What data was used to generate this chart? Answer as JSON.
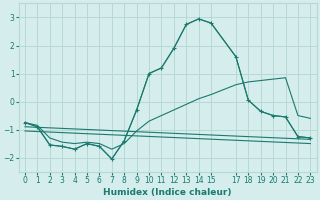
{
  "xlabel": "Humidex (Indice chaleur)",
  "background_color": "#d5edec",
  "grid_color": "#b8d8d6",
  "line_color": "#1a7a6e",
  "xlim": [
    -0.5,
    23.5
  ],
  "ylim": [
    -2.5,
    3.5
  ],
  "xticks": [
    0,
    1,
    2,
    3,
    4,
    5,
    6,
    7,
    8,
    9,
    10,
    11,
    12,
    13,
    14,
    15,
    17,
    18,
    19,
    20,
    21,
    22,
    23
  ],
  "yticks": [
    -2,
    -1,
    0,
    1,
    2,
    3
  ],
  "line1_x": [
    0,
    1,
    2,
    3,
    4,
    5,
    6,
    7,
    8,
    9,
    10,
    11,
    12,
    13,
    14,
    15,
    17,
    18,
    19,
    20,
    21,
    22,
    23
  ],
  "line1_y": [
    -0.75,
    -0.9,
    -1.55,
    -1.6,
    -1.7,
    -1.5,
    -1.6,
    -2.05,
    -1.4,
    -0.3,
    1.0,
    1.2,
    1.9,
    2.75,
    2.95,
    2.8,
    1.6,
    0.05,
    -0.35,
    -0.5,
    -0.55,
    -1.25,
    -1.3
  ],
  "line2_x": [
    0,
    1,
    2,
    3,
    4,
    5,
    6,
    7,
    8,
    9,
    10,
    11,
    12,
    13,
    14,
    15,
    17,
    18,
    19,
    20,
    21,
    22,
    23
  ],
  "line2_y": [
    -0.75,
    -0.9,
    -1.55,
    -1.6,
    -1.7,
    -1.5,
    -1.6,
    -2.05,
    -1.4,
    -0.3,
    1.0,
    1.2,
    1.9,
    2.75,
    2.95,
    2.8,
    1.6,
    0.05,
    -0.35,
    -0.5,
    -0.55,
    -1.25,
    -1.3
  ],
  "line3_x": [
    0,
    1,
    2,
    3,
    4,
    5,
    6,
    7,
    8,
    9,
    10,
    11,
    12,
    13,
    14,
    15,
    17,
    18,
    19,
    20,
    21,
    22,
    23
  ],
  "line3_y": [
    -0.75,
    -0.85,
    -1.3,
    -1.45,
    -1.5,
    -1.45,
    -1.5,
    -1.7,
    -1.5,
    -1.05,
    -0.7,
    -0.5,
    -0.3,
    -0.1,
    0.1,
    0.25,
    0.6,
    0.7,
    0.75,
    0.8,
    0.85,
    -0.5,
    -0.6
  ],
  "line4_x": [
    0,
    23
  ],
  "line4_y": [
    -0.9,
    -1.35
  ],
  "line5_x": [
    0,
    23
  ],
  "line5_y": [
    -1.05,
    -1.5
  ]
}
